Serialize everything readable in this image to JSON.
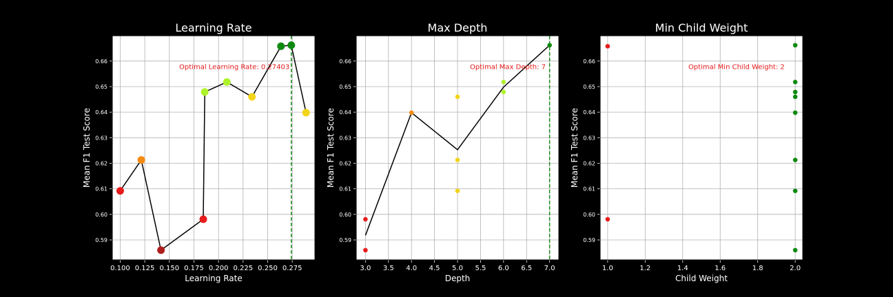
{
  "chart_data": [
    {
      "type": "scatter",
      "title": "Learning Rate",
      "xlabel": "Learning Rate",
      "ylabel": "Mean F1 Test Score",
      "xlim": [
        0.092,
        0.298
      ],
      "ylim": [
        0.5822,
        0.6699
      ],
      "xticks": [
        "0.100",
        "0.125",
        "0.150",
        "0.175",
        "0.200",
        "0.225",
        "0.250",
        "0.275"
      ],
      "yticks": [
        "0.59",
        "0.60",
        "0.61",
        "0.62",
        "0.63",
        "0.64",
        "0.65",
        "0.66"
      ],
      "grid": true,
      "points": [
        {
          "x": 0.1,
          "y": 0.6092,
          "color": "#e81c1c"
        },
        {
          "x": 0.1215,
          "y": 0.6213,
          "color": "#f58b12"
        },
        {
          "x": 0.1415,
          "y": 0.586,
          "color": "#b01e1e"
        },
        {
          "x": 0.1845,
          "y": 0.5981,
          "color": "#e81c1c"
        },
        {
          "x": 0.186,
          "y": 0.6479,
          "color": "#aef22a"
        },
        {
          "x": 0.2085,
          "y": 0.6518,
          "color": "#aef22a"
        },
        {
          "x": 0.234,
          "y": 0.646,
          "color": "#f2d41a"
        },
        {
          "x": 0.2635,
          "y": 0.6658,
          "color": "#0f8a10"
        },
        {
          "x": 0.274,
          "y": 0.6662,
          "color": "#0f8a10"
        },
        {
          "x": 0.289,
          "y": 0.6398,
          "color": "#f2d41a"
        }
      ],
      "line": {
        "x": [
          0.1,
          0.1215,
          0.1415,
          0.1845,
          0.186,
          0.2085,
          0.234,
          0.2635,
          0.274,
          0.289
        ],
        "y": [
          0.6092,
          0.6213,
          0.586,
          0.5981,
          0.6479,
          0.6518,
          0.646,
          0.6658,
          0.6662,
          0.6398
        ]
      },
      "optimal_line_x": 0.27403,
      "annotation": "Optimal Learning Rate: 0.27403",
      "annotation_x": 0.16,
      "annotation_y": 0.6568
    },
    {
      "type": "scatter",
      "title": "Max Depth",
      "xlabel": "Depth",
      "ylabel": "Mean F1 Test Score",
      "xlim": [
        2.8,
        7.2
      ],
      "ylim": [
        0.5822,
        0.6699
      ],
      "xticks": [
        "3.0",
        "3.5",
        "4.0",
        "4.5",
        "5.0",
        "5.5",
        "6.0",
        "6.5",
        "7.0"
      ],
      "yticks": [
        "0.59",
        "0.60",
        "0.61",
        "0.62",
        "0.63",
        "0.64",
        "0.65",
        "0.66"
      ],
      "grid": true,
      "points": [
        {
          "x": 3,
          "y": 0.5981,
          "color": "#e81c1c"
        },
        {
          "x": 3,
          "y": 0.586,
          "color": "#e81c1c"
        },
        {
          "x": 4,
          "y": 0.6398,
          "color": "#f58b12"
        },
        {
          "x": 5,
          "y": 0.646,
          "color": "#f2d41a"
        },
        {
          "x": 5,
          "y": 0.6213,
          "color": "#f2d41a"
        },
        {
          "x": 5,
          "y": 0.6092,
          "color": "#f2d41a"
        },
        {
          "x": 6,
          "y": 0.6518,
          "color": "#aef22a"
        },
        {
          "x": 6,
          "y": 0.6479,
          "color": "#aef22a"
        },
        {
          "x": 7,
          "y": 0.6662,
          "color": "#0f8a10"
        }
      ],
      "line": {
        "x": [
          3,
          4,
          5,
          6,
          7
        ],
        "y": [
          0.5918,
          0.6398,
          0.6253,
          0.6498,
          0.6662
        ]
      },
      "optimal_line_x": 7,
      "annotation": "Optimal Max Depth: 7",
      "annotation_x": 5.27,
      "annotation_y": 0.6568
    },
    {
      "type": "scatter",
      "title": "Min Child Weight",
      "xlabel": "Child Weight",
      "ylabel": "Mean F1 Test Score",
      "xlim": [
        0.96,
        2.04
      ],
      "ylim": [
        0.5822,
        0.6699
      ],
      "xticks": [
        "1.0",
        "1.2",
        "1.4",
        "1.6",
        "1.8",
        "2.0"
      ],
      "yticks": [
        "0.59",
        "0.60",
        "0.61",
        "0.62",
        "0.63",
        "0.64",
        "0.65",
        "0.66"
      ],
      "grid": true,
      "points": [
        {
          "x": 1,
          "y": 0.6658,
          "color": "#e81c1c"
        },
        {
          "x": 1,
          "y": 0.5981,
          "color": "#e81c1c"
        },
        {
          "x": 2,
          "y": 0.6662,
          "color": "#0f8a10"
        },
        {
          "x": 2,
          "y": 0.6518,
          "color": "#0f8a10"
        },
        {
          "x": 2,
          "y": 0.6479,
          "color": "#0f8a10"
        },
        {
          "x": 2,
          "y": 0.646,
          "color": "#0f8a10"
        },
        {
          "x": 2,
          "y": 0.6398,
          "color": "#0f8a10"
        },
        {
          "x": 2,
          "y": 0.6213,
          "color": "#0f8a10"
        },
        {
          "x": 2,
          "y": 0.6092,
          "color": "#0f8a10"
        },
        {
          "x": 2,
          "y": 0.586,
          "color": "#0f8a10"
        }
      ],
      "annotation": "Optimal Min Child Weight: 2",
      "annotation_x": 1.43,
      "annotation_y": 0.6568
    }
  ],
  "colors": {
    "figure_bg": "#000000",
    "axes_bg": "#ffffff",
    "grid": "#b0b0b0",
    "line": "#000000",
    "optimal_line": "#1a8a1a",
    "annotation": "#e61a1a",
    "text": "#ffffff"
  }
}
